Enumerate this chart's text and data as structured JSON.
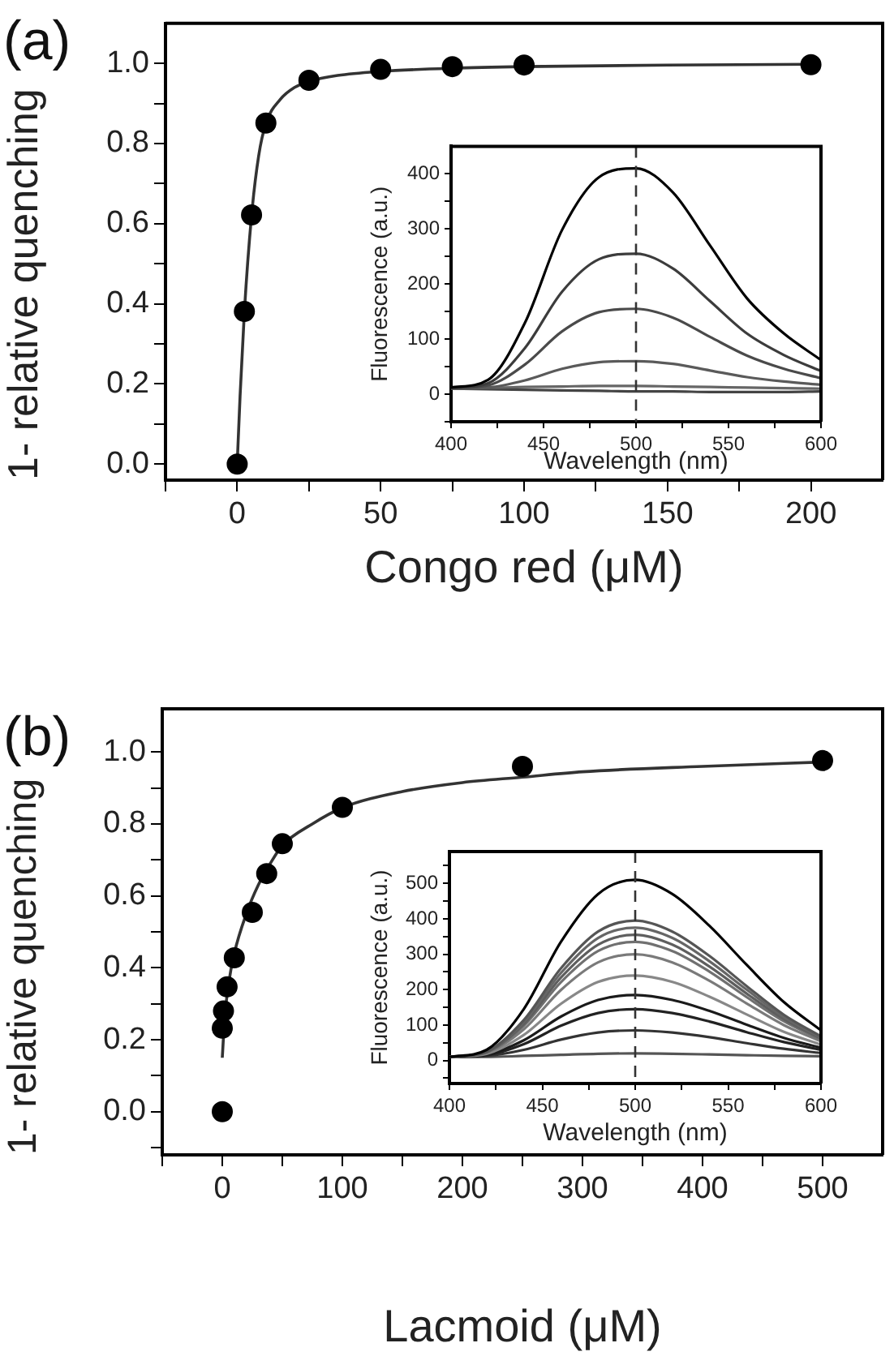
{
  "chart_data": [
    {
      "type": "scatter",
      "title": "(a)",
      "xlabel": "Congo red (μM)",
      "ylabel": "1- relative quenching",
      "xlim": [
        -25,
        225
      ],
      "ylim": [
        -0.04,
        1.1
      ],
      "xticks": [
        {
          "value": -25,
          "label": null
        },
        0,
        {
          "value": 25,
          "label": null
        },
        50,
        {
          "value": 75,
          "label": null
        },
        100,
        {
          "value": 125,
          "label": null
        },
        150,
        {
          "value": 175,
          "label": null
        },
        200
      ],
      "yticks": [
        {
          "value": 0,
          "label": "0.0"
        },
        {
          "value": 0.1,
          "label": null
        },
        0.2,
        {
          "value": 0.3,
          "label": null
        },
        0.4,
        {
          "value": 0.5,
          "label": null
        },
        0.6,
        {
          "value": 0.7,
          "label": null
        },
        0.8,
        {
          "value": 0.9,
          "label": null
        },
        {
          "value": 1,
          "label": "1.0"
        }
      ],
      "series": [
        {
          "type": "line",
          "color": "#333333",
          "x": [
            0,
            1,
            2.5,
            5,
            7.5,
            10,
            15,
            20,
            25,
            35,
            50,
            75,
            100,
            150,
            200
          ],
          "values": [
            0,
            0.17,
            0.38,
            0.62,
            0.77,
            0.85,
            0.91,
            0.94,
            0.955,
            0.97,
            0.98,
            0.988,
            0.992,
            0.996,
            0.998
          ]
        },
        {
          "marker": "circle",
          "color": "#000000",
          "x": [
            0,
            2.5,
            5,
            10,
            25,
            50,
            75,
            100,
            200
          ],
          "values": [
            0,
            0.381,
            0.622,
            0.851,
            0.958,
            0.985,
            0.992,
            0.996,
            0.997
          ]
        }
      ]
    },
    {
      "type": "line",
      "xlabel": "Wavelength (nm)",
      "ylabel": "Fluorescence (a.u.)",
      "xlim": [
        400,
        600
      ],
      "ylim": [
        -50,
        450
      ],
      "xticks": [
        400,
        {
          "value": 425,
          "label": null
        },
        450,
        {
          "value": 475,
          "label": null
        },
        500,
        {
          "value": 525,
          "label": null
        },
        550,
        {
          "value": 575,
          "label": null
        },
        600
      ],
      "yticks": [
        {
          "value": -50,
          "label": null
        },
        0,
        {
          "value": 50,
          "label": null
        },
        100,
        {
          "value": 150,
          "label": null
        },
        200,
        {
          "value": 250,
          "label": null
        },
        300,
        {
          "value": 350,
          "label": null
        },
        400
      ],
      "x": [
        400,
        420,
        440,
        460,
        480,
        500,
        520,
        540,
        560,
        580,
        600
      ],
      "ref_lines": [
        {
          "axis": "x",
          "value": 500,
          "line_style": "dashed",
          "color": "#333333"
        }
      ],
      "series": [
        {
          "color": "#000000",
          "values": [
            12,
            26,
            130,
            298,
            394,
            410,
            366,
            270,
            174,
            110,
            62
          ]
        },
        {
          "color": "#3c3c3c",
          "values": [
            11,
            20,
            84,
            186,
            245,
            255,
            228,
            169,
            110,
            71,
            42
          ]
        },
        {
          "color": "#4a4a4a",
          "values": [
            11,
            16,
            54,
            114,
            149,
            155,
            139,
            104,
            70,
            46,
            29
          ]
        },
        {
          "color": "#5a5a5a",
          "values": [
            10,
            12,
            25,
            46,
            58,
            60,
            55,
            43,
            31,
            23,
            17
          ]
        },
        {
          "color": "#666666",
          "values": [
            12,
            12,
            13,
            14,
            15,
            15,
            14,
            13,
            12,
            11,
            10
          ]
        },
        {
          "color": "#444444",
          "values": [
            10,
            9,
            8,
            7,
            6,
            5,
            5,
            4,
            4,
            4,
            5
          ]
        }
      ]
    },
    {
      "type": "scatter",
      "title": "(b)",
      "xlabel": "Lacmoid (μM)",
      "ylabel": "1- relative quenching",
      "xlim": [
        -50,
        550
      ],
      "ylim": [
        -0.12,
        1.12
      ],
      "xticks": [
        {
          "value": -50,
          "label": null
        },
        0,
        {
          "value": 50,
          "label": null
        },
        100,
        {
          "value": 150,
          "label": null
        },
        200,
        {
          "value": 250,
          "label": null
        },
        300,
        {
          "value": 350,
          "label": null
        },
        400,
        {
          "value": 450,
          "label": null
        },
        500
      ],
      "yticks": [
        {
          "value": -0.1,
          "label": null
        },
        {
          "value": 0,
          "label": "0.0"
        },
        {
          "value": 0.1,
          "label": null
        },
        0.2,
        {
          "value": 0.3,
          "label": null
        },
        0.4,
        {
          "value": 0.5,
          "label": null
        },
        0.6,
        {
          "value": 0.7,
          "label": null
        },
        0.8,
        {
          "value": 0.9,
          "label": null
        },
        {
          "value": 1,
          "label": "1.0"
        }
      ],
      "series": [
        {
          "type": "line",
          "color": "#333333",
          "x": [
            0,
            2,
            5,
            10,
            20,
            30,
            40,
            50,
            75,
            100,
            150,
            200,
            250,
            300,
            400,
            500
          ],
          "values": [
            0.15,
            0.26,
            0.35,
            0.44,
            0.55,
            0.63,
            0.69,
            0.74,
            0.8,
            0.845,
            0.89,
            0.915,
            0.93,
            0.945,
            0.96,
            0.972
          ]
        },
        {
          "marker": "circle",
          "color": "#000000",
          "x": [
            0,
            0,
            1,
            4,
            10,
            25,
            37,
            50,
            100,
            250,
            500
          ],
          "values": [
            0,
            0.232,
            0.28,
            0.347,
            0.428,
            0.554,
            0.662,
            0.745,
            0.846,
            0.96,
            0.976
          ]
        }
      ]
    },
    {
      "type": "line",
      "xlabel": "Wavelength (nm)",
      "ylabel": "Fluorescence (a.u.)",
      "xlim": [
        400,
        600
      ],
      "ylim": [
        -65,
        590
      ],
      "xticks": [
        400,
        {
          "value": 425,
          "label": null
        },
        450,
        {
          "value": 475,
          "label": null
        },
        500,
        {
          "value": 525,
          "label": null
        },
        550,
        {
          "value": 575,
          "label": null
        },
        600
      ],
      "yticks": [
        {
          "value": -50,
          "label": null
        },
        0,
        {
          "value": 50,
          "label": null
        },
        100,
        {
          "value": 150,
          "label": null
        },
        200,
        {
          "value": 250,
          "label": null
        },
        300,
        {
          "value": 350,
          "label": null
        },
        400,
        {
          "value": 450,
          "label": null
        },
        500,
        {
          "value": 550,
          "label": null
        }
      ],
      "x": [
        400,
        420,
        440,
        460,
        480,
        500,
        520,
        540,
        560,
        580,
        600
      ],
      "ref_lines": [
        {
          "axis": "x",
          "value": 500,
          "line_style": "dashed",
          "color": "#333333"
        }
      ],
      "series": [
        {
          "color": "#000000",
          "values": [
            10,
            30,
            145,
            335,
            470,
            510,
            470,
            380,
            270,
            165,
            85
          ]
        },
        {
          "color": "#555555",
          "values": [
            10,
            25,
            114,
            260,
            364,
            395,
            364,
            295,
            210,
            129,
            68
          ]
        },
        {
          "color": "#666666",
          "values": [
            10,
            25,
            109,
            247,
            346,
            375,
            346,
            280,
            200,
            123,
            65
          ]
        },
        {
          "color": "#5e5e5e",
          "values": [
            10,
            24,
            103,
            234,
            327,
            355,
            327,
            265,
            189,
            117,
            62
          ]
        },
        {
          "color": "#707070",
          "values": [
            10,
            23,
            98,
            221,
            309,
            335,
            309,
            251,
            179,
            111,
            59
          ]
        },
        {
          "color": "#7a7a7a",
          "values": [
            10,
            22,
            88,
            199,
            277,
            300,
            277,
            225,
            161,
            100,
            54
          ]
        },
        {
          "color": "#888888",
          "values": [
            10,
            19,
            72,
            160,
            222,
            240,
            222,
            180,
            130,
            81,
            45
          ]
        },
        {
          "color": "#1a1a1a",
          "values": [
            10,
            17,
            57,
            124,
            171,
            185,
            171,
            140,
            101,
            64,
            36
          ]
        },
        {
          "color": "#222222",
          "values": [
            10,
            15,
            46,
            98,
            134,
            145,
            134,
            110,
            80,
            52,
            30
          ]
        },
        {
          "color": "#333333",
          "values": [
            10,
            13,
            30,
            59,
            79,
            85,
            79,
            66,
            49,
            33,
            21
          ]
        },
        {
          "color": "#555555",
          "values": [
            10,
            10,
            13,
            16,
            19,
            20,
            19,
            17,
            15,
            13,
            12
          ]
        }
      ]
    }
  ]
}
